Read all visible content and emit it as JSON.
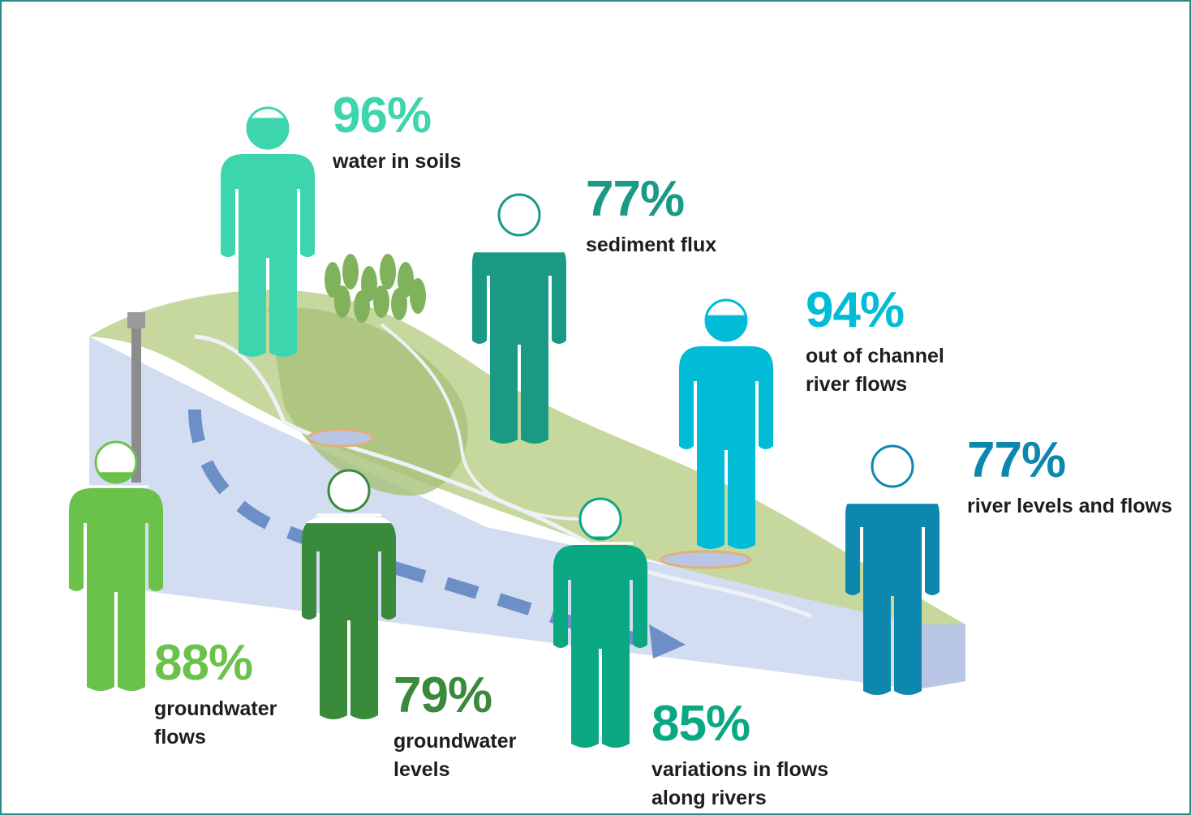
{
  "chart_data": {
    "type": "pictogram",
    "categories": [
      "water in soils",
      "sediment flux",
      "out of channel\nriver flows",
      "river levels and flows",
      "groundwater\nflows",
      "groundwater\nlevels",
      "variations in flows\nalong rivers"
    ],
    "values": [
      96,
      77,
      94,
      77,
      88,
      79,
      85
    ],
    "value_labels": [
      "96%",
      "77%",
      "94%",
      "77%",
      "88%",
      "79%",
      "85%"
    ],
    "colors": [
      "#3dd5ad",
      "#1a9985",
      "#00bcd6",
      "#0d87ad",
      "#6bc24b",
      "#3a8a3b",
      "#09a883"
    ]
  }
}
